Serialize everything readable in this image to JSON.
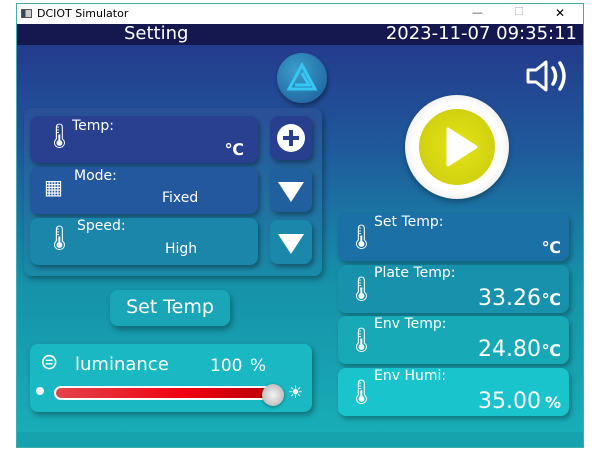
{
  "window": {
    "title": "DCIOT Simulator",
    "minimize": "—",
    "maximize": "☐",
    "close": "✕"
  },
  "header": {
    "title": "Setting",
    "datetime": "2023-11-07 09:35:11"
  },
  "settings": {
    "temp": {
      "label": "Temp:",
      "value": "",
      "unit": "℃"
    },
    "mode": {
      "label": "Mode:",
      "value": "Fixed"
    },
    "speed": {
      "label": "Speed:",
      "value": "High"
    }
  },
  "set_temp_button": "Set Temp",
  "luminance": {
    "label": "luminance",
    "value": "100",
    "unit": "%",
    "level": 100,
    "bar_color": "#e00010"
  },
  "readings": {
    "set_temp": {
      "label": "Set Temp:",
      "value": "",
      "unit": "℃"
    },
    "plate_temp": {
      "label": "Plate Temp:",
      "value": "33.26",
      "unit": "℃"
    },
    "env_temp": {
      "label": "Env Temp:",
      "value": "24.80",
      "unit": "℃"
    },
    "env_humi": {
      "label": "Env Humi:",
      "value": "35.00",
      "unit": "%"
    }
  },
  "colors": {
    "header": "#15184e",
    "play": "#d8d80e"
  }
}
